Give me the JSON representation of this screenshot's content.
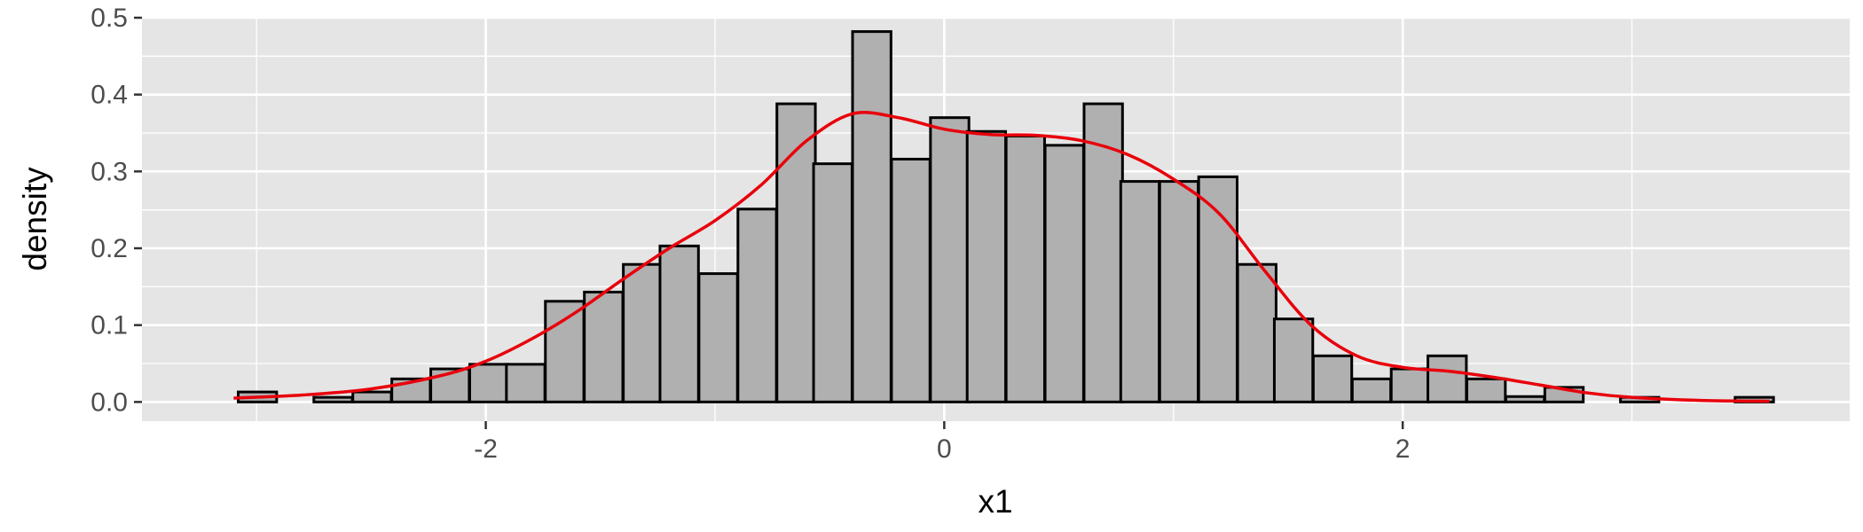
{
  "chart_data": {
    "type": "bar",
    "subtype": "histogram-with-density",
    "title": "",
    "xlabel": "x1",
    "ylabel": "density",
    "xlim": [
      -3.5,
      3.95
    ],
    "ylim": [
      -0.025,
      0.5
    ],
    "grid": true,
    "legend": "none",
    "x_ticks": [
      -2,
      0,
      2
    ],
    "x_tick_labels": [
      "-2",
      "0",
      "2"
    ],
    "y_ticks": [
      0.0,
      0.1,
      0.2,
      0.3,
      0.4,
      0.5
    ],
    "y_tick_labels": [
      "0.0",
      "0.1",
      "0.2",
      "0.3",
      "0.4",
      "0.5"
    ],
    "bin_width": 0.1677,
    "bins": [
      {
        "x0": -3.08,
        "value": 0.013
      },
      {
        "x0": -2.91,
        "value": 0.0
      },
      {
        "x0": -2.75,
        "value": 0.006
      },
      {
        "x0": -2.58,
        "value": 0.013
      },
      {
        "x0": -2.41,
        "value": 0.03
      },
      {
        "x0": -2.24,
        "value": 0.043
      },
      {
        "x0": -2.07,
        "value": 0.049
      },
      {
        "x0": -1.91,
        "value": 0.049
      },
      {
        "x0": -1.74,
        "value": 0.131
      },
      {
        "x0": -1.57,
        "value": 0.143
      },
      {
        "x0": -1.4,
        "value": 0.179
      },
      {
        "x0": -1.24,
        "value": 0.203
      },
      {
        "x0": -1.07,
        "value": 0.167
      },
      {
        "x0": -0.9,
        "value": 0.251
      },
      {
        "x0": -0.73,
        "value": 0.388
      },
      {
        "x0": -0.57,
        "value": 0.31
      },
      {
        "x0": -0.4,
        "value": 0.482
      },
      {
        "x0": -0.23,
        "value": 0.316
      },
      {
        "x0": -0.06,
        "value": 0.37
      },
      {
        "x0": 0.1,
        "value": 0.352
      },
      {
        "x0": 0.27,
        "value": 0.346
      },
      {
        "x0": 0.44,
        "value": 0.334
      },
      {
        "x0": 0.61,
        "value": 0.388
      },
      {
        "x0": 0.77,
        "value": 0.287
      },
      {
        "x0": 0.94,
        "value": 0.287
      },
      {
        "x0": 1.11,
        "value": 0.293
      },
      {
        "x0": 1.28,
        "value": 0.179
      },
      {
        "x0": 1.44,
        "value": 0.108
      },
      {
        "x0": 1.61,
        "value": 0.06
      },
      {
        "x0": 1.78,
        "value": 0.03
      },
      {
        "x0": 1.95,
        "value": 0.043
      },
      {
        "x0": 2.11,
        "value": 0.06
      },
      {
        "x0": 2.28,
        "value": 0.03
      },
      {
        "x0": 2.45,
        "value": 0.007
      },
      {
        "x0": 2.62,
        "value": 0.019
      },
      {
        "x0": 2.78,
        "value": 0.0
      },
      {
        "x0": 2.95,
        "value": 0.006
      },
      {
        "x0": 3.12,
        "value": 0.0
      },
      {
        "x0": 3.29,
        "value": 0.0
      },
      {
        "x0": 3.45,
        "value": 0.006
      }
    ],
    "density_curve": {
      "color": "#e8000b",
      "x": [
        -3.1,
        -2.8,
        -2.5,
        -2.2,
        -2.0,
        -1.8,
        -1.6,
        -1.4,
        -1.2,
        -1.0,
        -0.8,
        -0.6,
        -0.4,
        -0.2,
        0.0,
        0.2,
        0.4,
        0.6,
        0.8,
        1.0,
        1.2,
        1.4,
        1.6,
        1.8,
        2.0,
        2.2,
        2.4,
        2.6,
        2.8,
        3.0,
        3.3,
        3.6
      ],
      "y": [
        0.005,
        0.009,
        0.017,
        0.034,
        0.053,
        0.082,
        0.118,
        0.16,
        0.2,
        0.236,
        0.282,
        0.34,
        0.375,
        0.37,
        0.355,
        0.348,
        0.347,
        0.34,
        0.322,
        0.29,
        0.245,
        0.17,
        0.1,
        0.06,
        0.045,
        0.04,
        0.032,
        0.022,
        0.012,
        0.006,
        0.002,
        0.001
      ]
    },
    "colors": {
      "panel_background": "#e5e5e5",
      "grid_major": "#ffffff",
      "bar_fill": "#b0b0b0",
      "bar_stroke": "#000000",
      "axis_text": "#4d4d4d"
    }
  }
}
